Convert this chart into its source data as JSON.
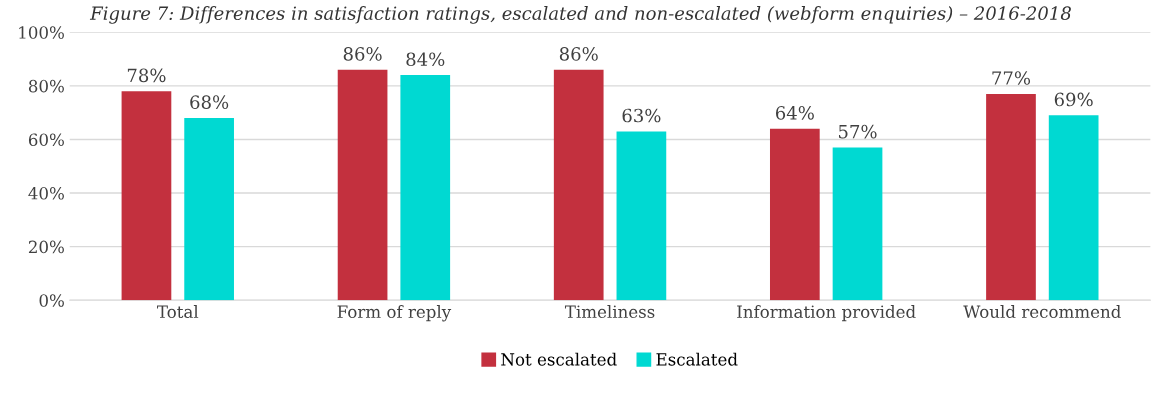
{
  "chart_data": {
    "type": "bar",
    "title": "Figure 7: Differences in satisfaction ratings, escalated and non-escalated (webform enquiries) – 2016-2018",
    "categories": [
      "Total",
      "Form of reply",
      "Timeliness",
      "Information provided",
      "Would recommend"
    ],
    "series": [
      {
        "name": "Not escalated",
        "color": "#c3303e",
        "values": [
          78,
          86,
          86,
          64,
          77
        ],
        "value_labels": [
          "78%",
          "86%",
          "86%",
          "64%",
          "77%"
        ]
      },
      {
        "name": "Escalated",
        "color": "#00d9d2",
        "values": [
          68,
          84,
          63,
          57,
          69
        ],
        "value_labels": [
          "68%",
          "84%",
          "63%",
          "57%",
          "69%"
        ]
      }
    ],
    "ylim": [
      0,
      100
    ],
    "yticks": [
      {
        "value": 0,
        "label": "0%"
      },
      {
        "value": 20,
        "label": "20%"
      },
      {
        "value": 40,
        "label": "40%"
      },
      {
        "value": 60,
        "label": "60%"
      },
      {
        "value": 80,
        "label": "80%"
      },
      {
        "value": 100,
        "label": "100%"
      }
    ],
    "grid": "y",
    "legend": "bottom"
  }
}
